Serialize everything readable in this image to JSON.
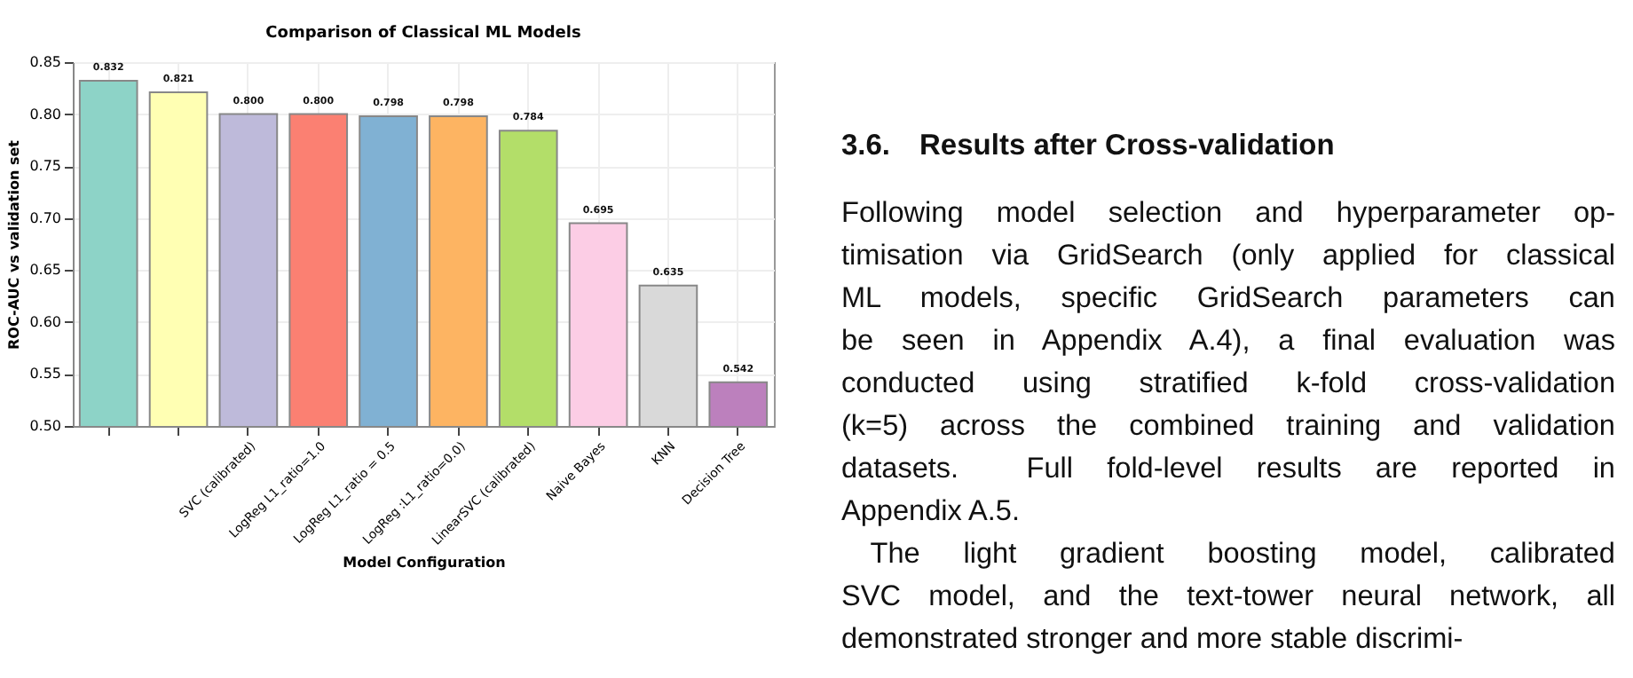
{
  "chart_data": {
    "type": "bar",
    "title": "Comparison of Classical ML Models",
    "xlabel": "Model Configuration",
    "ylabel": "ROC-AUC vs validation set",
    "categories": [
      null,
      null,
      "SVC (calibrated)",
      "LogReg L1_ratio=1.0",
      "LogReg L1_ratio = 0.5",
      "LogReg  :L1_ratio=0.0)",
      "LinearSVC (calibrated)",
      "Naive Bayes",
      "KNN",
      "Decision Tree"
    ],
    "values": [
      0.832,
      0.821,
      0.8,
      0.8,
      0.798,
      0.798,
      0.784,
      0.695,
      0.635,
      0.542
    ],
    "colors": [
      "#8dd3c7",
      "#ffffb3",
      "#bebada",
      "#fb8072",
      "#80b1d3",
      "#fdb462",
      "#b3de69",
      "#fccde5",
      "#d9d9d9",
      "#bc80bd"
    ],
    "ylim": [
      0.5,
      0.85
    ],
    "yticks": [
      {
        "value": 0.5,
        "label": "0.50"
      },
      {
        "value": 0.55,
        "label": "0.55"
      },
      {
        "value": 0.6,
        "label": "0.60"
      },
      {
        "value": 0.65,
        "label": "0.65"
      },
      {
        "value": 0.7,
        "label": "0.70"
      },
      {
        "value": 0.75,
        "label": "0.75"
      },
      {
        "value": 0.8,
        "label": "0.80"
      },
      {
        "value": 0.85,
        "label": "0.85"
      }
    ],
    "grid": true,
    "value_labels": [
      "0.832",
      "0.821",
      "0.800",
      "0.800",
      "0.798",
      "0.798",
      "0.784",
      "0.695",
      "0.635",
      "0.542"
    ],
    "annotations": [
      "3.6. Results after Cross-validation",
      "Following model selection and hyperparameter op-",
      "timisation via GridSearch (only applied for classical",
      "ML models, specific GridSearch parameters can",
      "be seen in Appendix A.4), a final evaluation was",
      "conducted using stratified k-fold cross-validation",
      "(k=5) across the combined training and validation",
      "datasets.  Full fold-level results are reported in",
      "Appendix A.5.",
      " The light gradient boosting model, calibrated",
      "SVC model, and the text-tower neural network, all",
      "demonstrated stronger and more stable discrimi-"
    ]
  }
}
